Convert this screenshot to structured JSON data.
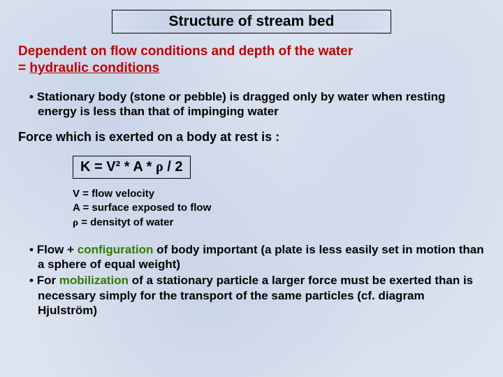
{
  "title": "Structure of stream bed",
  "lead_line1": "Dependent on flow conditions and depth of the water",
  "lead_line2_prefix": "= ",
  "lead_line2_underlined": "hydraulic conditions",
  "bullet1": "Stationary body (stone or pebble) is dragged only by water when resting energy is less than that of impinging water",
  "force_line": "Force which is exerted on a body at rest is :",
  "formula_prefix": "K = V² * A * ",
  "formula_rho": "ρ",
  "formula_suffix": " / 2",
  "legend_v": "V = flow velocity",
  "legend_a": "A = surface exposed to flow",
  "legend_rho_sym": "ρ",
  "legend_rho_rest": " = densityt of water",
  "bullet2_pre": "Flow + ",
  "bullet2_green": "configuration",
  "bullet2_post": " of body important (a plate is less easily set in motion than a sphere of equal weight)",
  "bullet3_pre": "For ",
  "bullet3_green": "mobilization",
  "bullet3_post": " of a stationary particle a larger force must be exerted than is necessary simply for the transport of the same particles (cf. diagram Hjulström)",
  "colors": {
    "background": "#dde4f0",
    "text": "#000000",
    "red": "#c00000",
    "green": "#2e7d00",
    "border": "#000000"
  }
}
